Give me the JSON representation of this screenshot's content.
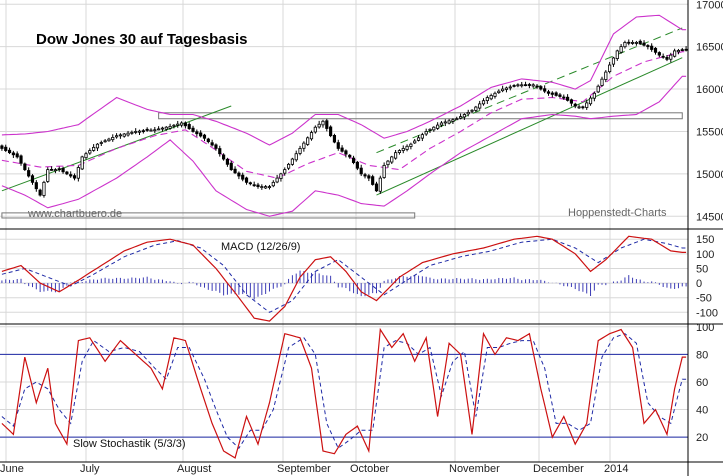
{
  "colors": {
    "background": "#ffffff",
    "grid": "#d8d8d8",
    "candle": "#000000",
    "bollinger": "#cc33cc",
    "moving_average": "#cc33cc",
    "trend_channel": "#2a8a2a",
    "macd": "#cc1111",
    "signal": "#1f2aa6",
    "histogram": "#3b3bb5",
    "stoch_k": "#cc1111",
    "stoch_d": "#1f2aa6",
    "stoch_levels": "#1f2aa6",
    "resistance_box": "#777777"
  },
  "chart_data": [
    {
      "type": "candlestick",
      "title": "Dow Jones 30 auf Tagesbasis",
      "watermark_left": "www.chartbuero.de",
      "credit": "Hoppenstedt-Charts",
      "x_ticks": [
        "June",
        "July",
        "August",
        "September",
        "October",
        "November",
        "December",
        "2014"
      ],
      "y_ticks": [
        14500,
        15000,
        15500,
        16000,
        16500,
        17000
      ],
      "y_range": [
        14350,
        17050
      ],
      "grid": true,
      "close_anchors": [
        [
          0,
          15300
        ],
        [
          4,
          15200
        ],
        [
          8,
          14900
        ],
        [
          10,
          14750
        ],
        [
          12,
          15050
        ],
        [
          15,
          15050
        ],
        [
          19,
          14950
        ],
        [
          21,
          15200
        ],
        [
          25,
          15350
        ],
        [
          30,
          15450
        ],
        [
          35,
          15500
        ],
        [
          40,
          15520
        ],
        [
          44,
          15560
        ],
        [
          47,
          15600
        ],
        [
          50,
          15500
        ],
        [
          53,
          15420
        ],
        [
          56,
          15300
        ],
        [
          60,
          15050
        ],
        [
          64,
          14900
        ],
        [
          67,
          14850
        ],
        [
          70,
          14850
        ],
        [
          74,
          15050
        ],
        [
          78,
          15300
        ],
        [
          82,
          15550
        ],
        [
          84,
          15620
        ],
        [
          86,
          15450
        ],
        [
          88,
          15300
        ],
        [
          91,
          15200
        ],
        [
          94,
          15000
        ],
        [
          96,
          14950
        ],
        [
          98,
          14800
        ],
        [
          100,
          15100
        ],
        [
          103,
          15250
        ],
        [
          107,
          15350
        ],
        [
          111,
          15500
        ],
        [
          115,
          15600
        ],
        [
          119,
          15650
        ],
        [
          123,
          15750
        ],
        [
          127,
          15900
        ],
        [
          131,
          16000
        ],
        [
          135,
          16050
        ],
        [
          139,
          16050
        ],
        [
          143,
          15950
        ],
        [
          147,
          15900
        ],
        [
          150,
          15800
        ],
        [
          152,
          15780
        ],
        [
          155,
          15950
        ],
        [
          158,
          16200
        ],
        [
          161,
          16450
        ],
        [
          163,
          16550
        ],
        [
          166,
          16550
        ],
        [
          169,
          16500
        ],
        [
          172,
          16400
        ],
        [
          174,
          16350
        ],
        [
          176,
          16450
        ],
        [
          178,
          16460
        ]
      ],
      "upper_band_anchors": [
        [
          0,
          15460
        ],
        [
          6,
          15470
        ],
        [
          12,
          15500
        ],
        [
          20,
          15580
        ],
        [
          30,
          15900
        ],
        [
          38,
          15760
        ],
        [
          44,
          15700
        ],
        [
          50,
          15700
        ],
        [
          56,
          15620
        ],
        [
          64,
          15480
        ],
        [
          70,
          15340
        ],
        [
          76,
          15480
        ],
        [
          82,
          15700
        ],
        [
          88,
          15700
        ],
        [
          94,
          15580
        ],
        [
          100,
          15420
        ],
        [
          106,
          15500
        ],
        [
          112,
          15620
        ],
        [
          120,
          15800
        ],
        [
          128,
          16020
        ],
        [
          136,
          16120
        ],
        [
          144,
          16080
        ],
        [
          150,
          16000
        ],
        [
          154,
          16100
        ],
        [
          160,
          16650
        ],
        [
          166,
          16850
        ],
        [
          172,
          16870
        ],
        [
          178,
          16700
        ]
      ],
      "lower_band_anchors": [
        [
          0,
          14860
        ],
        [
          6,
          14750
        ],
        [
          12,
          14600
        ],
        [
          20,
          14700
        ],
        [
          30,
          14950
        ],
        [
          38,
          15200
        ],
        [
          44,
          15400
        ],
        [
          50,
          15150
        ],
        [
          56,
          14800
        ],
        [
          64,
          14580
        ],
        [
          70,
          14500
        ],
        [
          76,
          14560
        ],
        [
          82,
          14800
        ],
        [
          88,
          14750
        ],
        [
          94,
          14650
        ],
        [
          100,
          14620
        ],
        [
          106,
          14800
        ],
        [
          112,
          15000
        ],
        [
          120,
          15250
        ],
        [
          128,
          15450
        ],
        [
          136,
          15650
        ],
        [
          144,
          15700
        ],
        [
          150,
          15680
        ],
        [
          154,
          15650
        ],
        [
          160,
          15680
        ],
        [
          166,
          15700
        ],
        [
          172,
          15850
        ],
        [
          178,
          16150
        ]
      ],
      "moving_average_anchors": [
        [
          0,
          15160
        ],
        [
          10,
          15080
        ],
        [
          20,
          15100
        ],
        [
          30,
          15300
        ],
        [
          40,
          15450
        ],
        [
          48,
          15520
        ],
        [
          56,
          15280
        ],
        [
          64,
          15030
        ],
        [
          72,
          14950
        ],
        [
          80,
          15120
        ],
        [
          88,
          15250
        ],
        [
          96,
          15100
        ],
        [
          104,
          15050
        ],
        [
          112,
          15300
        ],
        [
          120,
          15500
        ],
        [
          128,
          15720
        ],
        [
          136,
          15880
        ],
        [
          144,
          15900
        ],
        [
          152,
          15850
        ],
        [
          160,
          16150
        ],
        [
          168,
          16320
        ],
        [
          178,
          16440
        ]
      ],
      "upper_trend_line": [
        [
          98,
          15250
        ],
        [
          178,
          16720
        ]
      ],
      "lower_trend_line": [
        [
          98,
          14750
        ],
        [
          178,
          16370
        ]
      ],
      "early_trend_line": [
        [
          0,
          14800
        ],
        [
          60,
          15800
        ]
      ],
      "resistance_box": [
        [
          41,
          15650
        ],
        [
          178,
          15720
        ]
      ],
      "support_box": [
        [
          0,
          14480
        ],
        [
          108,
          14540
        ]
      ]
    },
    {
      "type": "line",
      "label": "MACD (12/26/9)",
      "y_ticks": [
        150,
        100,
        50,
        0,
        -50,
        -100
      ],
      "y_range": [
        -140,
        185
      ],
      "macd_anchors": [
        [
          0,
          40
        ],
        [
          5,
          60
        ],
        [
          10,
          0
        ],
        [
          15,
          -30
        ],
        [
          20,
          10
        ],
        [
          26,
          60
        ],
        [
          32,
          110
        ],
        [
          38,
          140
        ],
        [
          44,
          150
        ],
        [
          50,
          130
        ],
        [
          56,
          50
        ],
        [
          62,
          -50
        ],
        [
          66,
          -120
        ],
        [
          70,
          -130
        ],
        [
          74,
          -80
        ],
        [
          78,
          20
        ],
        [
          82,
          80
        ],
        [
          86,
          90
        ],
        [
          90,
          40
        ],
        [
          94,
          -30
        ],
        [
          98,
          -60
        ],
        [
          104,
          20
        ],
        [
          110,
          70
        ],
        [
          118,
          100
        ],
        [
          126,
          120
        ],
        [
          134,
          150
        ],
        [
          140,
          160
        ],
        [
          144,
          150
        ],
        [
          150,
          100
        ],
        [
          154,
          40
        ],
        [
          158,
          80
        ],
        [
          164,
          160
        ],
        [
          170,
          150
        ],
        [
          175,
          110
        ],
        [
          178,
          105
        ]
      ],
      "signal_anchors": [
        [
          0,
          30
        ],
        [
          6,
          50
        ],
        [
          12,
          20
        ],
        [
          18,
          -10
        ],
        [
          24,
          30
        ],
        [
          32,
          90
        ],
        [
          40,
          130
        ],
        [
          46,
          145
        ],
        [
          52,
          120
        ],
        [
          58,
          60
        ],
        [
          64,
          -40
        ],
        [
          70,
          -100
        ],
        [
          76,
          -60
        ],
        [
          82,
          40
        ],
        [
          88,
          80
        ],
        [
          94,
          20
        ],
        [
          100,
          -40
        ],
        [
          106,
          10
        ],
        [
          112,
          60
        ],
        [
          120,
          90
        ],
        [
          128,
          110
        ],
        [
          136,
          140
        ],
        [
          144,
          150
        ],
        [
          150,
          120
        ],
        [
          156,
          70
        ],
        [
          162,
          120
        ],
        [
          168,
          150
        ],
        [
          174,
          135
        ],
        [
          178,
          120
        ]
      ]
    },
    {
      "type": "line",
      "label": "Slow Stochastik (5/3/3)",
      "y_ticks": [
        100,
        80,
        60,
        40,
        20
      ],
      "y_range": [
        2,
        102
      ],
      "levels": [
        80,
        20
      ],
      "k_anchors": [
        [
          0,
          30
        ],
        [
          3,
          22
        ],
        [
          6,
          78
        ],
        [
          9,
          45
        ],
        [
          12,
          70
        ],
        [
          14,
          30
        ],
        [
          17,
          15
        ],
        [
          20,
          90
        ],
        [
          23,
          92
        ],
        [
          27,
          75
        ],
        [
          31,
          90
        ],
        [
          35,
          80
        ],
        [
          39,
          70
        ],
        [
          42,
          55
        ],
        [
          45,
          92
        ],
        [
          48,
          90
        ],
        [
          52,
          55
        ],
        [
          55,
          30
        ],
        [
          58,
          10
        ],
        [
          61,
          5
        ],
        [
          64,
          35
        ],
        [
          67,
          15
        ],
        [
          70,
          45
        ],
        [
          74,
          95
        ],
        [
          78,
          92
        ],
        [
          81,
          70
        ],
        [
          84,
          10
        ],
        [
          87,
          8
        ],
        [
          90,
          22
        ],
        [
          93,
          28
        ],
        [
          96,
          10
        ],
        [
          99,
          98
        ],
        [
          102,
          85
        ],
        [
          105,
          95
        ],
        [
          108,
          75
        ],
        [
          111,
          92
        ],
        [
          114,
          35
        ],
        [
          117,
          88
        ],
        [
          120,
          80
        ],
        [
          123,
          22
        ],
        [
          126,
          95
        ],
        [
          129,
          80
        ],
        [
          132,
          92
        ],
        [
          135,
          90
        ],
        [
          138,
          95
        ],
        [
          141,
          55
        ],
        [
          144,
          20
        ],
        [
          147,
          35
        ],
        [
          150,
          15
        ],
        [
          153,
          30
        ],
        [
          156,
          90
        ],
        [
          159,
          95
        ],
        [
          162,
          98
        ],
        [
          165,
          85
        ],
        [
          168,
          30
        ],
        [
          171,
          40
        ],
        [
          174,
          22
        ],
        [
          176,
          55
        ],
        [
          178,
          78
        ]
      ],
      "d_anchors": [
        [
          0,
          35
        ],
        [
          3,
          28
        ],
        [
          6,
          55
        ],
        [
          9,
          60
        ],
        [
          12,
          55
        ],
        [
          15,
          40
        ],
        [
          18,
          30
        ],
        [
          21,
          75
        ],
        [
          24,
          90
        ],
        [
          28,
          82
        ],
        [
          32,
          85
        ],
        [
          36,
          82
        ],
        [
          40,
          70
        ],
        [
          43,
          62
        ],
        [
          46,
          85
        ],
        [
          49,
          85
        ],
        [
          53,
          62
        ],
        [
          56,
          40
        ],
        [
          59,
          20
        ],
        [
          62,
          12
        ],
        [
          65,
          25
        ],
        [
          68,
          25
        ],
        [
          71,
          40
        ],
        [
          75,
          85
        ],
        [
          79,
          92
        ],
        [
          82,
          80
        ],
        [
          85,
          30
        ],
        [
          88,
          12
        ],
        [
          91,
          18
        ],
        [
          94,
          25
        ],
        [
          97,
          25
        ],
        [
          100,
          85
        ],
        [
          103,
          90
        ],
        [
          106,
          88
        ],
        [
          109,
          80
        ],
        [
          112,
          85
        ],
        [
          115,
          50
        ],
        [
          118,
          75
        ],
        [
          121,
          82
        ],
        [
          124,
          35
        ],
        [
          127,
          85
        ],
        [
          130,
          85
        ],
        [
          133,
          88
        ],
        [
          136,
          90
        ],
        [
          139,
          90
        ],
        [
          142,
          70
        ],
        [
          145,
          30
        ],
        [
          148,
          30
        ],
        [
          151,
          25
        ],
        [
          154,
          30
        ],
        [
          157,
          78
        ],
        [
          160,
          92
        ],
        [
          163,
          95
        ],
        [
          166,
          88
        ],
        [
          169,
          45
        ],
        [
          172,
          35
        ],
        [
          175,
          30
        ],
        [
          178,
          62
        ]
      ]
    }
  ]
}
